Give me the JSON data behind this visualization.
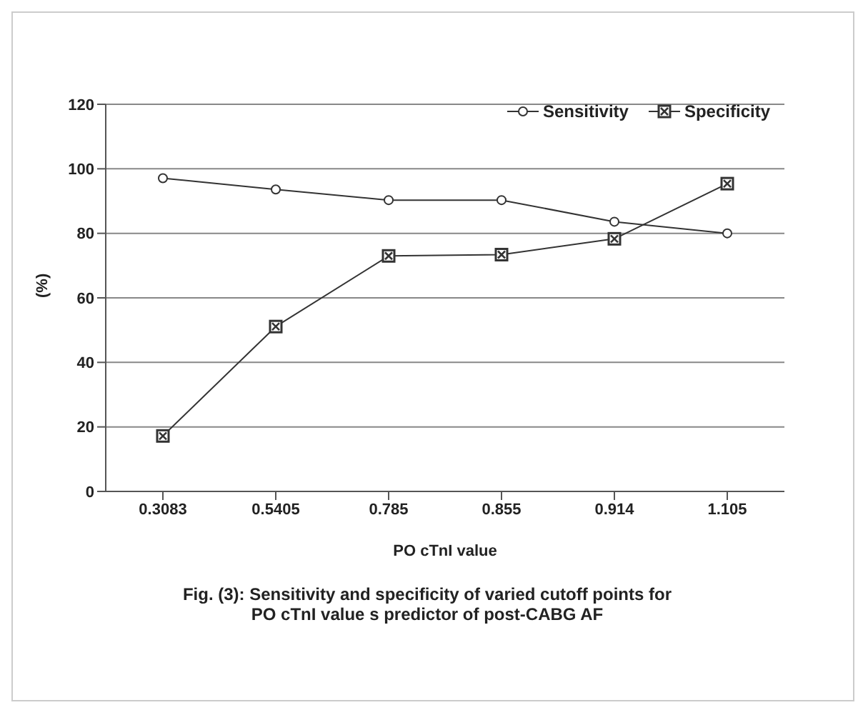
{
  "chart_data": {
    "type": "line",
    "xlabel": "PO cTnI value",
    "ylabel": "(%)",
    "categories": [
      "0.3083",
      "0.5405",
      "0.785",
      "0.855",
      "0.914",
      "1.105"
    ],
    "series": [
      {
        "name": "Sensitivity",
        "color": "#333333",
        "marker": "circle",
        "values": [
          97.1,
          93.6,
          90.3,
          90.3,
          83.6,
          80
        ]
      },
      {
        "name": "Specificity",
        "color": "#333333",
        "marker": "square",
        "values": [
          17.2,
          51.1,
          73,
          73.4,
          78.3,
          95.4
        ]
      }
    ],
    "ylim": [
      0,
      120
    ],
    "yticks": [
      0,
      20,
      40,
      60,
      80,
      100,
      120
    ],
    "grid": "y",
    "legend": "top right",
    "line_style": "solid",
    "annotations": [
      "Fig. (3): Sensitivity and specificity of varied cutoff points for PO cTnI value s predictor of post-CABG AF"
    ]
  }
}
